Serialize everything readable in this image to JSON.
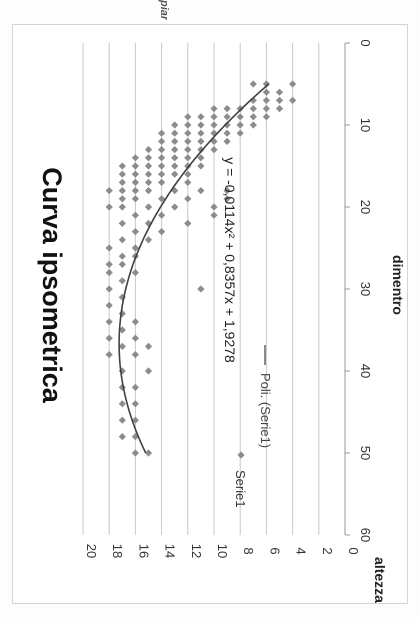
{
  "document": {
    "header_fragment": "piante presenti"
  },
  "chart_data": {
    "type": "scatter",
    "title": "Curva ipsometrica",
    "xlabel": "dimentro",
    "ylabel": "altezza",
    "xlim": [
      0,
      60
    ],
    "ylim": [
      0,
      20
    ],
    "x_ticks": [
      "0",
      "10",
      "20",
      "30",
      "40",
      "50",
      "60"
    ],
    "y_ticks": [
      "0",
      "2",
      "4",
      "6",
      "8",
      "10",
      "12",
      "14",
      "16",
      "18",
      "20"
    ],
    "grid": "horizontal",
    "legend_position": "right",
    "orientation_note": "rotated 90 degrees clockwise",
    "series": [
      {
        "name": "Serie1",
        "marker": "diamond",
        "color": "#8c8c8c",
        "points": [
          [
            5,
            4
          ],
          [
            5,
            6
          ],
          [
            5,
            7
          ],
          [
            6,
            5
          ],
          [
            6,
            6
          ],
          [
            7,
            4
          ],
          [
            7,
            5
          ],
          [
            7,
            6
          ],
          [
            7,
            7
          ],
          [
            8,
            5
          ],
          [
            8,
            6
          ],
          [
            8,
            7
          ],
          [
            8,
            8
          ],
          [
            8,
            9
          ],
          [
            8,
            10
          ],
          [
            9,
            6
          ],
          [
            9,
            7
          ],
          [
            9,
            8
          ],
          [
            9,
            9
          ],
          [
            9,
            10
          ],
          [
            9,
            11
          ],
          [
            9,
            12
          ],
          [
            10,
            7
          ],
          [
            10,
            8
          ],
          [
            10,
            9
          ],
          [
            10,
            10
          ],
          [
            10,
            11
          ],
          [
            10,
            12
          ],
          [
            10,
            13
          ],
          [
            11,
            8
          ],
          [
            11,
            9
          ],
          [
            11,
            10
          ],
          [
            11,
            11
          ],
          [
            11,
            12
          ],
          [
            11,
            13
          ],
          [
            11,
            14
          ],
          [
            12,
            9
          ],
          [
            12,
            10
          ],
          [
            12,
            11
          ],
          [
            12,
            12
          ],
          [
            12,
            13
          ],
          [
            12,
            14
          ],
          [
            13,
            10
          ],
          [
            13,
            11
          ],
          [
            13,
            12
          ],
          [
            13,
            13
          ],
          [
            13,
            14
          ],
          [
            13,
            15
          ],
          [
            14,
            11
          ],
          [
            14,
            12
          ],
          [
            14,
            13
          ],
          [
            14,
            14
          ],
          [
            14,
            15
          ],
          [
            14,
            16
          ],
          [
            15,
            11
          ],
          [
            15,
            12
          ],
          [
            15,
            13
          ],
          [
            15,
            14
          ],
          [
            15,
            15
          ],
          [
            15,
            16
          ],
          [
            15,
            17
          ],
          [
            16,
            12
          ],
          [
            16,
            13
          ],
          [
            16,
            14
          ],
          [
            16,
            15
          ],
          [
            16,
            16
          ],
          [
            16,
            17
          ],
          [
            17,
            12
          ],
          [
            17,
            14
          ],
          [
            17,
            15
          ],
          [
            17,
            16
          ],
          [
            17,
            17
          ],
          [
            18,
            9
          ],
          [
            18,
            11
          ],
          [
            18,
            13
          ],
          [
            18,
            15
          ],
          [
            18,
            16
          ],
          [
            18,
            17
          ],
          [
            18,
            18
          ],
          [
            19,
            9
          ],
          [
            19,
            12
          ],
          [
            19,
            14
          ],
          [
            19,
            16
          ],
          [
            19,
            17
          ],
          [
            20,
            10
          ],
          [
            20,
            13
          ],
          [
            20,
            15
          ],
          [
            20,
            17
          ],
          [
            20,
            18
          ],
          [
            21,
            10
          ],
          [
            21,
            14
          ],
          [
            21,
            16
          ],
          [
            22,
            12
          ],
          [
            22,
            15
          ],
          [
            22,
            17
          ],
          [
            23,
            14
          ],
          [
            23,
            16
          ],
          [
            24,
            15
          ],
          [
            24,
            17
          ],
          [
            25,
            16
          ],
          [
            25,
            18
          ],
          [
            26,
            16
          ],
          [
            26,
            17
          ],
          [
            27,
            17
          ],
          [
            27,
            18
          ],
          [
            28,
            16
          ],
          [
            28,
            18
          ],
          [
            29,
            17
          ],
          [
            30,
            11
          ],
          [
            30,
            18
          ],
          [
            31,
            17
          ],
          [
            32,
            18
          ],
          [
            33,
            17
          ],
          [
            34,
            16
          ],
          [
            34,
            18
          ],
          [
            35,
            17
          ],
          [
            36,
            16
          ],
          [
            36,
            18
          ],
          [
            37,
            15
          ],
          [
            37,
            17
          ],
          [
            38,
            16
          ],
          [
            38,
            18
          ],
          [
            40,
            15
          ],
          [
            40,
            17
          ],
          [
            42,
            16
          ],
          [
            42,
            17
          ],
          [
            44,
            16
          ],
          [
            44,
            17
          ],
          [
            46,
            16
          ],
          [
            46,
            17
          ],
          [
            48,
            16
          ],
          [
            48,
            17
          ],
          [
            50,
            15
          ],
          [
            50,
            16
          ]
        ]
      }
    ],
    "trendline": {
      "name": "Poli. (Serie1)",
      "equation": "y = -0,0114x² + 0,8357x + 1,9278",
      "a": -0.0114,
      "b": 0.8357,
      "c": 1.9278,
      "x_range": [
        5,
        50
      ],
      "color": "#404040"
    }
  }
}
